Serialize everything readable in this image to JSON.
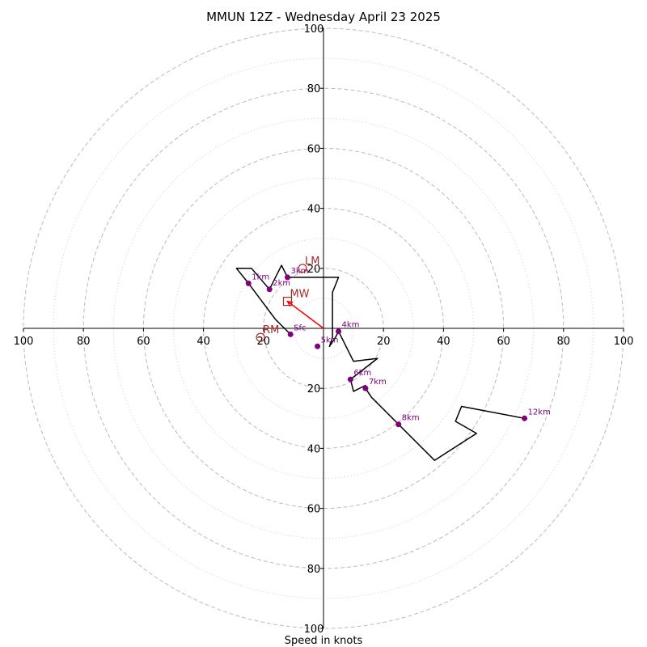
{
  "chart_data": {
    "type": "line",
    "title": "MMUN 12Z - Wednesday April 23 2025",
    "xlabel": "Speed in knots",
    "ylabel": "",
    "xlim": [
      -100,
      100
    ],
    "ylim": [
      -100,
      100
    ],
    "rings_major": [
      20,
      40,
      60,
      80,
      100
    ],
    "rings_minor": [
      10,
      30,
      50,
      70,
      90
    ],
    "x_tick_labels": [
      "100",
      "80",
      "60",
      "40",
      "20",
      "20",
      "40",
      "60",
      "80",
      "100"
    ],
    "x_tick_values": [
      -100,
      -80,
      -60,
      -40,
      -20,
      20,
      40,
      60,
      80,
      100
    ],
    "y_tick_labels": [
      "100",
      "80",
      "60",
      "40",
      "20",
      "20",
      "40",
      "60",
      "80",
      "100"
    ],
    "y_tick_values": [
      100,
      80,
      60,
      40,
      20,
      -20,
      -40,
      -60,
      -80,
      -100
    ],
    "grid": true,
    "colors": {
      "hodograph": "#000000",
      "height_marker": "#800080",
      "motion": "#a52a2a",
      "mean_wind_vector": "#ff0000",
      "ring_grid": "#bbbbbb"
    },
    "series": [
      {
        "points": [
          [
            -11,
            -2
          ],
          [
            -16,
            3
          ],
          [
            -25,
            15
          ],
          [
            -29,
            20
          ],
          [
            -24,
            20
          ],
          [
            -18,
            13
          ],
          [
            -14,
            21
          ],
          [
            -12,
            17
          ],
          [
            -6,
            17
          ],
          [
            -5,
            17
          ],
          [
            5,
            17
          ],
          [
            3,
            12
          ],
          [
            3,
            11
          ],
          [
            3,
            0
          ],
          [
            3,
            -3
          ],
          [
            2,
            -6
          ],
          [
            4,
            -3
          ],
          [
            5,
            -1
          ],
          [
            10,
            -11
          ],
          [
            18,
            -10
          ],
          [
            9,
            -17
          ],
          [
            10,
            -21
          ],
          [
            14,
            -19
          ],
          [
            14,
            -20
          ],
          [
            16,
            -23
          ],
          [
            25,
            -32
          ],
          [
            37,
            -44
          ],
          [
            51,
            -35
          ],
          [
            44,
            -31
          ],
          [
            46,
            -26
          ],
          [
            67,
            -30
          ],
          [
            67,
            -30
          ]
        ]
      }
    ],
    "height_markers": [
      {
        "label": "Sfc",
        "x": -11,
        "y": -2
      },
      {
        "label": "1km",
        "x": -25,
        "y": 15
      },
      {
        "label": "2km",
        "x": -18,
        "y": 13
      },
      {
        "label": "3km",
        "x": -12,
        "y": 17
      },
      {
        "label": "4km",
        "x": 5,
        "y": -1
      },
      {
        "label": "5km",
        "x": -2,
        "y": -6
      },
      {
        "label": "6km",
        "x": 9,
        "y": -17
      },
      {
        "label": "7km",
        "x": 14,
        "y": -20
      },
      {
        "label": "8km",
        "x": 25,
        "y": -32
      },
      {
        "label": "12km",
        "x": 67,
        "y": -30
      }
    ],
    "storm_motions": [
      {
        "label": "LM",
        "x": -7,
        "y": 20
      },
      {
        "label": "MW",
        "x": -12,
        "y": 9
      },
      {
        "label": "RM",
        "x": -21,
        "y": -3
      }
    ],
    "mean_wind_vector": {
      "from": [
        0,
        0
      ],
      "to": [
        -12,
        9
      ]
    }
  }
}
